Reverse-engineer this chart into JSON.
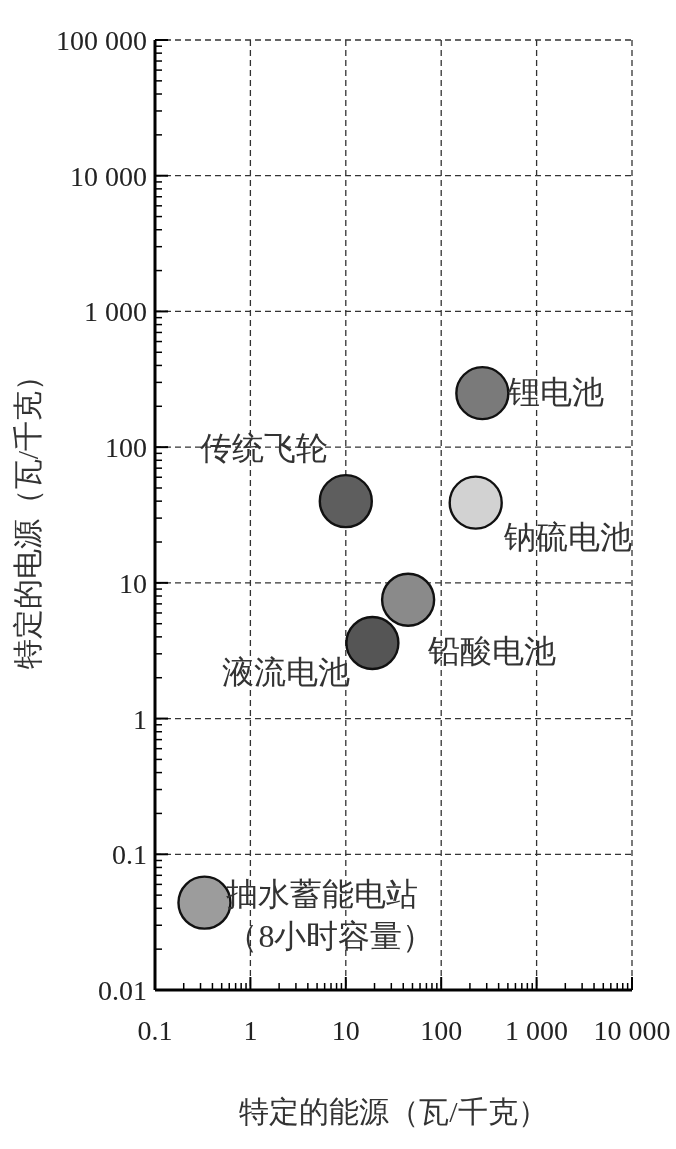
{
  "chart_data": {
    "type": "scatter",
    "xlabel": "特定的能源（瓦/千克）",
    "ylabel": "特定的电源（瓦/千克）",
    "log": "xy",
    "grid": true,
    "marker": "circle",
    "xlim": [
      0.1,
      10000
    ],
    "ylim": [
      0.01,
      100000
    ],
    "xticks": [
      0.1,
      1,
      10,
      100,
      {
        "value": 1000,
        "label": "1 000"
      },
      {
        "value": 10000,
        "label": "10 000"
      }
    ],
    "yticks": [
      0.01,
      0.1,
      1,
      10,
      100,
      {
        "value": 1000,
        "label": "1 000"
      },
      {
        "value": 10000,
        "label": "10 000"
      },
      {
        "value": 100000,
        "label": "100 000"
      }
    ],
    "series": [
      {
        "name": "传统飞轮",
        "color": "#5e5e5e",
        "x": [
          10
        ],
        "values": [
          40
        ]
      },
      {
        "name": "锂电池",
        "color": "#7a7a7a",
        "x": [
          270
        ],
        "values": [
          250
        ]
      },
      {
        "name": "钠硫电池",
        "color": "#d2d2d2",
        "x": [
          230
        ],
        "values": [
          39
        ]
      },
      {
        "name": "铅酸电池",
        "color": "#8a8a8a",
        "x": [
          45
        ],
        "values": [
          7.5
        ]
      },
      {
        "name": "液流电池",
        "color": "#555555",
        "x": [
          19
        ],
        "values": [
          3.6
        ]
      },
      {
        "name": "抽水蓄能电站（8小时容量）",
        "color": "#9c9c9c",
        "x": [
          0.33
        ],
        "values": [
          0.044
        ]
      }
    ]
  }
}
